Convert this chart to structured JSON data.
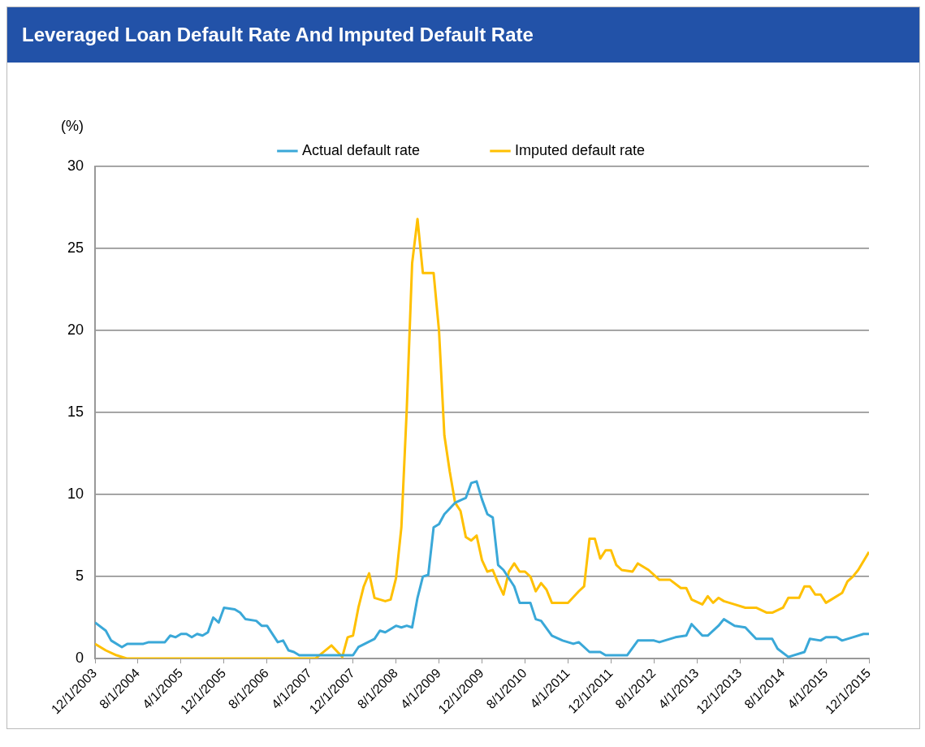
{
  "chart_data": {
    "type": "line",
    "title": "Leveraged Loan Default Rate And Imputed Default Rate",
    "ylabel": "(%)",
    "legend": "top",
    "grid": "y",
    "marker": "none",
    "line_style": "solid",
    "xlim": [
      "2003-12",
      "2015-12"
    ],
    "xticks": [
      {
        "value": "2003-12",
        "label": "12/1/2003"
      },
      {
        "value": "2004-08",
        "label": "8/1/2004"
      },
      {
        "value": "2005-04",
        "label": "4/1/2005"
      },
      {
        "value": "2005-12",
        "label": "12/1/2005"
      },
      {
        "value": "2006-08",
        "label": "8/1/2006"
      },
      {
        "value": "2007-04",
        "label": "4/1/2007"
      },
      {
        "value": "2007-12",
        "label": "12/1/2007"
      },
      {
        "value": "2008-08",
        "label": "8/1/2008"
      },
      {
        "value": "2009-04",
        "label": "4/1/2009"
      },
      {
        "value": "2009-12",
        "label": "12/1/2009"
      },
      {
        "value": "2010-08",
        "label": "8/1/2010"
      },
      {
        "value": "2011-04",
        "label": "4/1/2011"
      },
      {
        "value": "2011-12",
        "label": "12/1/2011"
      },
      {
        "value": "2012-08",
        "label": "8/1/2012"
      },
      {
        "value": "2013-04",
        "label": "4/1/2013"
      },
      {
        "value": "2013-12",
        "label": "12/1/2013"
      },
      {
        "value": "2014-08",
        "label": "8/1/2014"
      },
      {
        "value": "2015-04",
        "label": "4/1/2015"
      },
      {
        "value": "2015-12",
        "label": "12/1/2015"
      }
    ],
    "ylim": [
      0,
      30
    ],
    "yticks": [
      0,
      5,
      10,
      15,
      20,
      25,
      30
    ],
    "series": [
      {
        "name": "Actual default rate",
        "color": "#3aa8d8",
        "x": [
          "2003-12",
          "2004-02",
          "2004-03",
          "2004-05",
          "2004-06",
          "2004-09",
          "2004-10",
          "2005-01",
          "2005-02",
          "2005-03",
          "2005-04",
          "2005-05",
          "2005-06",
          "2005-07",
          "2005-08",
          "2005-09",
          "2005-10",
          "2005-11",
          "2005-12",
          "2006-02",
          "2006-03",
          "2006-04",
          "2006-06",
          "2006-07",
          "2006-08",
          "2006-10",
          "2006-11",
          "2006-12",
          "2007-01",
          "2007-02",
          "2007-06",
          "2007-12",
          "2008-01",
          "2008-04",
          "2008-05",
          "2008-06",
          "2008-08",
          "2008-09",
          "2008-10",
          "2008-11",
          "2008-12",
          "2009-01",
          "2009-02",
          "2009-03",
          "2009-04",
          "2009-05",
          "2009-07",
          "2009-09",
          "2009-10",
          "2009-11",
          "2009-12",
          "2010-01",
          "2010-02",
          "2010-03",
          "2010-04",
          "2010-06",
          "2010-07",
          "2010-09",
          "2010-10",
          "2010-11",
          "2011-01",
          "2011-03",
          "2011-05",
          "2011-06",
          "2011-08",
          "2011-10",
          "2011-11",
          "2012-03",
          "2012-05",
          "2012-08",
          "2012-09",
          "2012-12",
          "2013-02",
          "2013-03",
          "2013-05",
          "2013-06",
          "2013-08",
          "2013-09",
          "2013-11",
          "2014-01",
          "2014-03",
          "2014-06",
          "2014-07",
          "2014-09",
          "2014-12",
          "2015-01",
          "2015-03",
          "2015-04",
          "2015-06",
          "2015-07",
          "2015-09",
          "2015-11",
          "2015-12"
        ],
        "values": [
          2.2,
          1.7,
          1.1,
          0.7,
          0.9,
          0.9,
          1.0,
          1.0,
          1.4,
          1.3,
          1.5,
          1.5,
          1.3,
          1.5,
          1.4,
          1.6,
          2.5,
          2.2,
          3.1,
          3.0,
          2.8,
          2.4,
          2.3,
          2.0,
          2.0,
          1.0,
          1.1,
          0.5,
          0.4,
          0.2,
          0.2,
          0.2,
          0.7,
          1.2,
          1.7,
          1.6,
          2.0,
          1.9,
          2.0,
          1.9,
          3.7,
          5.0,
          5.1,
          8.0,
          8.2,
          8.8,
          9.5,
          9.8,
          10.7,
          10.8,
          9.7,
          8.8,
          8.6,
          5.7,
          5.4,
          4.4,
          3.4,
          3.4,
          2.4,
          2.3,
          1.4,
          1.1,
          0.9,
          1.0,
          0.4,
          0.4,
          0.2,
          0.2,
          1.1,
          1.1,
          1.0,
          1.3,
          1.4,
          2.1,
          1.4,
          1.4,
          2.0,
          2.4,
          2.0,
          1.9,
          1.2,
          1.2,
          0.6,
          0.1,
          0.4,
          1.2,
          1.1,
          1.3,
          1.3,
          1.1,
          1.3,
          1.5,
          1.5
        ]
      },
      {
        "name": "Imputed default rate",
        "color": "#ffc000",
        "x": [
          "2003-12",
          "2004-02",
          "2004-04",
          "2004-06",
          "2007-05",
          "2007-08",
          "2007-10",
          "2007-11",
          "2007-12",
          "2008-01",
          "2008-02",
          "2008-03",
          "2008-04",
          "2008-06",
          "2008-07",
          "2008-08",
          "2008-09",
          "2008-10",
          "2008-11",
          "2008-12",
          "2009-01",
          "2009-03",
          "2009-04",
          "2009-05",
          "2009-06",
          "2009-07",
          "2009-08",
          "2009-09",
          "2009-10",
          "2009-11",
          "2009-12",
          "2010-01",
          "2010-02",
          "2010-03",
          "2010-04",
          "2010-05",
          "2010-06",
          "2010-07",
          "2010-08",
          "2010-09",
          "2010-10",
          "2010-11",
          "2010-12",
          "2011-01",
          "2011-04",
          "2011-06",
          "2011-07",
          "2011-08",
          "2011-09",
          "2011-10",
          "2011-11",
          "2011-12",
          "2012-01",
          "2012-02",
          "2012-04",
          "2012-05",
          "2012-07",
          "2012-09",
          "2012-11",
          "2013-01",
          "2013-02",
          "2013-03",
          "2013-05",
          "2013-06",
          "2013-07",
          "2013-08",
          "2013-09",
          "2013-11",
          "2014-01",
          "2014-03",
          "2014-05",
          "2014-06",
          "2014-08",
          "2014-09",
          "2014-11",
          "2014-12",
          "2015-01",
          "2015-02",
          "2015-03",
          "2015-04",
          "2015-05",
          "2015-07",
          "2015-08",
          "2015-09",
          "2015-10",
          "2015-12"
        ],
        "values": [
          0.9,
          0.5,
          0.2,
          0,
          0,
          0.8,
          0.1,
          1.3,
          1.4,
          3.1,
          4.4,
          5.2,
          3.7,
          3.5,
          3.6,
          4.9,
          8.0,
          15.2,
          24.1,
          26.8,
          23.5,
          23.5,
          20.0,
          13.6,
          11.4,
          9.5,
          9.0,
          7.4,
          7.2,
          7.5,
          6.0,
          5.3,
          5.4,
          4.6,
          3.9,
          5.3,
          5.8,
          5.3,
          5.3,
          5.0,
          4.1,
          4.6,
          4.2,
          3.4,
          3.4,
          4.1,
          4.4,
          7.3,
          7.3,
          6.1,
          6.6,
          6.6,
          5.7,
          5.4,
          5.3,
          5.8,
          5.4,
          4.8,
          4.8,
          4.3,
          4.3,
          3.6,
          3.3,
          3.8,
          3.4,
          3.7,
          3.5,
          3.3,
          3.1,
          3.1,
          2.8,
          2.8,
          3.1,
          3.7,
          3.7,
          4.4,
          4.4,
          3.9,
          3.9,
          3.4,
          3.6,
          4.0,
          4.7,
          5.0,
          5.4,
          6.5
        ]
      }
    ]
  }
}
